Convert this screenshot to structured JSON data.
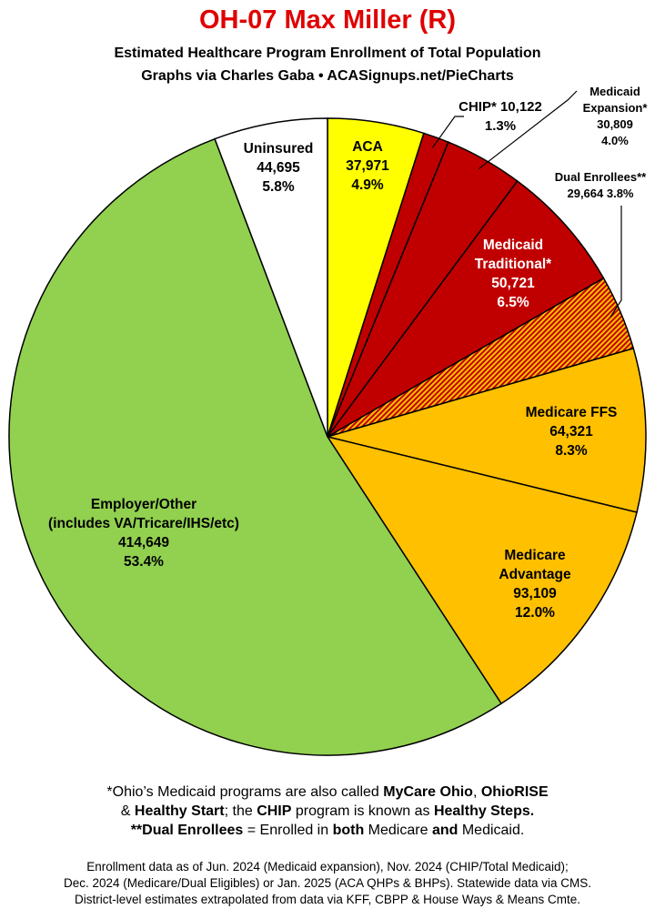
{
  "title": "OH-07 Max Miller (R)",
  "subtitle1": "Estimated Healthcare Program Enrollment of Total Population",
  "subtitle2": "Graphs via Charles Gaba  •  ACASignups.net/PieCharts",
  "chart_data": {
    "type": "pie",
    "start_angle_deg": 0,
    "direction": "clockwise",
    "slices": [
      {
        "id": "aca",
        "lines": [
          "ACA",
          "37,971",
          "4.9%"
        ],
        "value": 37971,
        "percent": 4.9,
        "color": "#ffff00"
      },
      {
        "id": "chip",
        "lines": [
          "CHIP* 10,122",
          "1.3%"
        ],
        "value": 10122,
        "percent": 1.3,
        "color": "#c00000"
      },
      {
        "id": "medicaid-expansion",
        "lines": [
          "Medicaid",
          "Expansion*",
          "30,809",
          "4.0%"
        ],
        "value": 30809,
        "percent": 4.0,
        "color": "#c00000"
      },
      {
        "id": "medicaid-traditional",
        "lines": [
          "Medicaid",
          "Traditional*",
          "50,721",
          "6.5%"
        ],
        "value": 50721,
        "percent": 6.5,
        "color": "#c00000"
      },
      {
        "id": "dual-enrollees",
        "lines": [
          "Dual Enrollees**",
          "29,664 3.8%"
        ],
        "value": 29664,
        "percent": 3.8,
        "color": "#e05a00",
        "pattern": "hatched"
      },
      {
        "id": "medicare-ffs",
        "lines": [
          "Medicare FFS",
          "64,321",
          "8.3%"
        ],
        "value": 64321,
        "percent": 8.3,
        "color": "#ffc000"
      },
      {
        "id": "medicare-advantage",
        "lines": [
          "Medicare",
          "Advantage",
          "93,109",
          "12.0%"
        ],
        "value": 93109,
        "percent": 12.0,
        "color": "#ffc000"
      },
      {
        "id": "employer-other",
        "lines": [
          "Employer/Other",
          "(includes VA/Tricare/IHS/etc)",
          "414,649",
          "53.4%"
        ],
        "value": 414649,
        "percent": 53.4,
        "color": "#92d050"
      },
      {
        "id": "uninsured",
        "lines": [
          "Uninsured",
          "44,695",
          "5.8%"
        ],
        "value": 44695,
        "percent": 5.8,
        "color": "#ffffff"
      }
    ]
  },
  "footnotes": {
    "line1": "*Ohio’s Medicaid programs are also called MyCare Ohio, OhioRISE",
    "line2": "& Healthy Start; the CHIP program is known as Healthy Steps.",
    "line3": "**Dual Enrollees = Enrolled in both Medicare and Medicaid."
  },
  "source": {
    "line1": "Enrollment data as of Jun. 2024 (Medicaid expansion), Nov. 2024 (CHIP/Total Medicaid);",
    "line2": "Dec. 2024 (Medicare/Dual Eligibles) or Jan. 2025 (ACA QHPs & BHPs). Statewide data via CMS.",
    "line3": "District-level estimates extrapolated from data via KFF, CBPP & House Ways & Means Cmte."
  }
}
